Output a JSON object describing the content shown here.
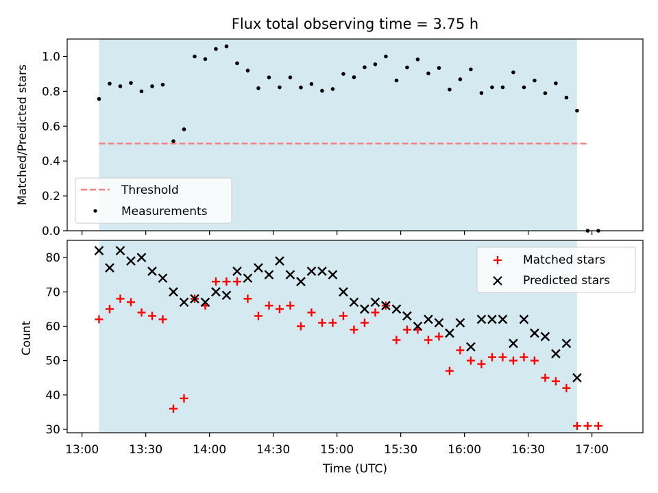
{
  "chart_data": [
    {
      "type": "scatter",
      "title": "Flux total observing time = 3.75 h",
      "xlabel": "",
      "ylabel": "Matched/Predicted stars",
      "ylim": [
        0,
        1.1
      ],
      "yticks": [
        0.0,
        0.2,
        0.4,
        0.6,
        0.8,
        1.0
      ],
      "ytick_labels": [
        "0.0",
        "0.2",
        "0.4",
        "0.6",
        "0.8",
        "1.0"
      ],
      "x_axis": "time (UTC), minutes after midnight",
      "xlim": [
        773,
        1044
      ],
      "shaded_span": [
        788,
        1013
      ],
      "shade_color": "#d4eaf0",
      "threshold": {
        "name": "Threshold",
        "value": 0.5,
        "x_range": [
          788,
          1018
        ],
        "color": "#f08080"
      },
      "series": [
        {
          "name": "Measurements",
          "marker": "dot",
          "color": "#000000",
          "x": [
            788,
            793,
            798,
            803,
            808,
            813,
            818,
            823,
            828,
            833,
            838,
            843,
            848,
            853,
            858,
            863,
            868,
            873,
            878,
            883,
            888,
            893,
            898,
            903,
            908,
            913,
            918,
            923,
            928,
            933,
            938,
            943,
            948,
            953,
            958,
            963,
            968,
            973,
            978,
            983,
            988,
            993,
            998,
            1003,
            1008,
            1013,
            1018,
            1023
          ],
          "y": [
            0.756,
            0.844,
            0.829,
            0.848,
            0.8,
            0.829,
            0.838,
            0.514,
            0.582,
            1.0,
            0.985,
            1.043,
            1.058,
            0.961,
            0.919,
            0.818,
            0.88,
            0.823,
            0.88,
            0.822,
            0.842,
            0.803,
            0.813,
            0.9,
            0.881,
            0.938,
            0.955,
            1.0,
            0.862,
            0.937,
            0.983,
            0.903,
            0.934,
            0.81,
            0.869,
            0.926,
            0.79,
            0.823,
            0.823,
            0.909,
            0.823,
            0.862,
            0.789,
            0.846,
            0.764,
            0.689,
            0.0,
            0.0
          ]
        }
      ],
      "legend": {
        "position": "lower left",
        "entries": [
          "Threshold",
          "Measurements"
        ]
      }
    },
    {
      "type": "scatter",
      "title": "",
      "xlabel": "Time (UTC)",
      "ylabel": "Count",
      "ylim": [
        29,
        85
      ],
      "yticks": [
        30,
        40,
        50,
        60,
        70,
        80
      ],
      "ytick_labels": [
        "30",
        "40",
        "50",
        "60",
        "70",
        "80"
      ],
      "x_axis": "time (UTC), minutes after midnight",
      "xlim": [
        773,
        1044
      ],
      "xticks": [
        780,
        810,
        840,
        870,
        900,
        930,
        960,
        990,
        1020
      ],
      "xtick_labels": [
        "13:00",
        "13:30",
        "14:00",
        "14:30",
        "15:00",
        "15:30",
        "16:00",
        "16:30",
        "17:00"
      ],
      "shaded_span": [
        788,
        1013
      ],
      "shade_color": "#d4eaf0",
      "series": [
        {
          "name": "Matched stars",
          "marker": "plus",
          "color": "#ff0000",
          "x": [
            788,
            793,
            798,
            803,
            808,
            813,
            818,
            823,
            828,
            833,
            838,
            843,
            848,
            853,
            858,
            863,
            868,
            873,
            878,
            883,
            888,
            893,
            898,
            903,
            908,
            913,
            918,
            923,
            928,
            933,
            938,
            943,
            948,
            953,
            958,
            963,
            968,
            973,
            978,
            983,
            988,
            993,
            998,
            1003,
            1008,
            1013,
            1018,
            1023
          ],
          "y": [
            62,
            65,
            68,
            67,
            64,
            63,
            62,
            36,
            39,
            68,
            66,
            73,
            73,
            73,
            68,
            63,
            66,
            65,
            66,
            60,
            64,
            61,
            61,
            63,
            59,
            61,
            64,
            66,
            56,
            59,
            59,
            56,
            57,
            47,
            53,
            50,
            49,
            51,
            51,
            50,
            51,
            50,
            45,
            44,
            42,
            31,
            31,
            31
          ]
        },
        {
          "name": "Predicted stars",
          "marker": "x",
          "color": "#000000",
          "x": [
            788,
            793,
            798,
            803,
            808,
            813,
            818,
            823,
            828,
            833,
            838,
            843,
            848,
            853,
            858,
            863,
            868,
            873,
            878,
            883,
            888,
            893,
            898,
            903,
            908,
            913,
            918,
            923,
            928,
            933,
            938,
            943,
            948,
            953,
            958,
            963,
            968,
            973,
            978,
            983,
            988,
            993,
            998,
            1003,
            1008,
            1013
          ],
          "y": [
            82,
            77,
            82,
            79,
            80,
            76,
            74,
            70,
            67,
            68,
            67,
            70,
            69,
            76,
            74,
            77,
            75,
            79,
            75,
            73,
            76,
            76,
            75,
            70,
            67,
            65,
            67,
            66,
            65,
            63,
            60,
            62,
            61,
            58,
            61,
            54,
            62,
            62,
            62,
            55,
            62,
            58,
            57,
            52,
            55,
            45
          ]
        }
      ],
      "legend": {
        "position": "upper right",
        "entries": [
          "Matched stars",
          "Predicted stars"
        ]
      }
    }
  ]
}
